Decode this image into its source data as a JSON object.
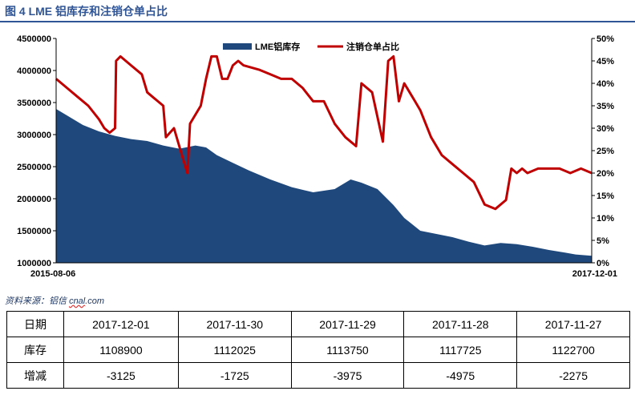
{
  "figure": {
    "title": "图 4     LME 铝库存和注销仓单占比",
    "source_prefix": "资料来源：铝信 ",
    "source_brand": "cnal",
    "source_suffix": ".com"
  },
  "colors": {
    "inventory_fill": "#1f497d",
    "ratio_line": "#c00000",
    "title": "#2f5597"
  },
  "chart_data": {
    "type": "area",
    "legend_position": "top-center",
    "grid": false,
    "x_start_label": "2015-08-06",
    "x_end_label": "2017-12-01",
    "y_left": {
      "min": 1000000,
      "max": 4500000,
      "step": 500000,
      "ticks": [
        "4500000",
        "4000000",
        "3500000",
        "3000000",
        "2500000",
        "2000000",
        "1500000",
        "1000000"
      ]
    },
    "y_right": {
      "min": 0,
      "max": 50,
      "step": 5,
      "ticks": [
        "50%",
        "45%",
        "40%",
        "35%",
        "30%",
        "25%",
        "20%",
        "15%",
        "10%",
        "5%",
        "0%"
      ]
    },
    "series": [
      {
        "name": "LME铝库存",
        "kind": "area",
        "axis": "left",
        "x": [
          0,
          0.02,
          0.05,
          0.08,
          0.11,
          0.14,
          0.17,
          0.2,
          0.23,
          0.26,
          0.28,
          0.3,
          0.33,
          0.36,
          0.4,
          0.44,
          0.48,
          0.52,
          0.55,
          0.57,
          0.6,
          0.63,
          0.65,
          0.68,
          0.71,
          0.74,
          0.77,
          0.8,
          0.83,
          0.86,
          0.89,
          0.92,
          0.95,
          0.97,
          1.0
        ],
        "y": [
          3400000,
          3300000,
          3150000,
          3050000,
          2980000,
          2930000,
          2900000,
          2830000,
          2780000,
          2830000,
          2800000,
          2680000,
          2560000,
          2440000,
          2300000,
          2180000,
          2100000,
          2150000,
          2300000,
          2250000,
          2150000,
          1900000,
          1700000,
          1500000,
          1450000,
          1400000,
          1330000,
          1270000,
          1310000,
          1290000,
          1250000,
          1200000,
          1160000,
          1130000,
          1108900
        ]
      },
      {
        "name": "注销仓单占比",
        "kind": "line",
        "axis": "right",
        "x": [
          0,
          0.02,
          0.04,
          0.06,
          0.08,
          0.09,
          0.1,
          0.11,
          0.112,
          0.12,
          0.14,
          0.16,
          0.17,
          0.18,
          0.19,
          0.2,
          0.205,
          0.22,
          0.23,
          0.24,
          0.245,
          0.25,
          0.27,
          0.28,
          0.29,
          0.3,
          0.31,
          0.32,
          0.33,
          0.34,
          0.35,
          0.38,
          0.4,
          0.42,
          0.44,
          0.46,
          0.48,
          0.5,
          0.52,
          0.54,
          0.55,
          0.56,
          0.57,
          0.59,
          0.61,
          0.62,
          0.63,
          0.64,
          0.65,
          0.66,
          0.67,
          0.68,
          0.7,
          0.72,
          0.74,
          0.76,
          0.78,
          0.8,
          0.82,
          0.84,
          0.85,
          0.86,
          0.87,
          0.88,
          0.9,
          0.92,
          0.94,
          0.96,
          0.98,
          1.0
        ],
        "y": [
          41,
          39,
          37,
          35,
          32,
          30,
          29,
          30,
          45,
          46,
          44,
          42,
          38,
          37,
          36,
          35,
          28,
          30,
          26,
          22,
          20,
          31,
          35,
          41,
          46,
          46,
          41,
          41,
          44,
          45,
          44,
          43,
          42,
          41,
          41,
          39,
          36,
          36,
          31,
          28,
          27,
          26,
          40,
          38,
          27,
          45,
          46,
          36,
          40,
          38,
          36,
          34,
          28,
          24,
          22,
          20,
          18,
          13,
          12,
          14,
          21,
          20,
          21,
          20,
          21,
          21,
          21,
          20,
          21,
          20
        ]
      }
    ]
  },
  "table": {
    "dates": [
      "日期",
      "2017-12-01",
      "2017-11-30",
      "2017-11-29",
      "2017-11-28",
      "2017-11-27"
    ],
    "inventory": [
      "库存",
      "1108900",
      "1112025",
      "1113750",
      "1117725",
      "1122700"
    ],
    "change": [
      "增减",
      "-3125",
      "-1725",
      "-3975",
      "-4975",
      "-2275"
    ]
  }
}
